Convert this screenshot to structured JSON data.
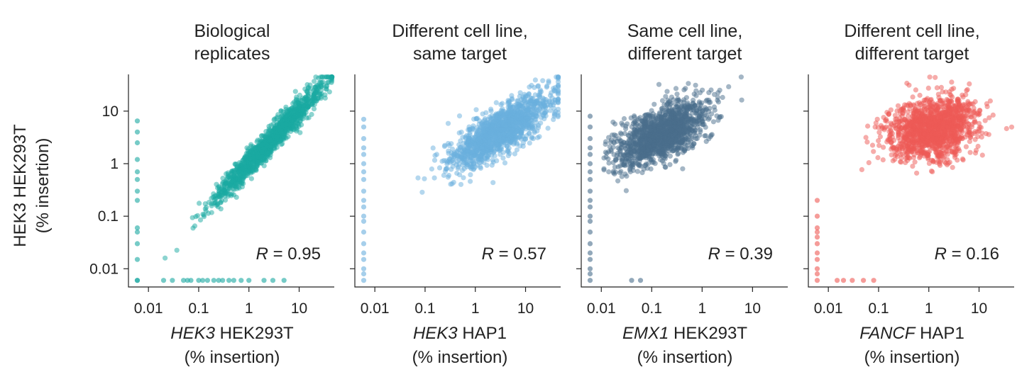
{
  "figure": {
    "ylabel_lines": [
      "HEK3 HEK293T",
      "(% insertion)"
    ]
  },
  "chart_data": [
    {
      "type": "scatter",
      "title_lines": [
        "Biological",
        "replicates"
      ],
      "xlabel_italic": "HEK3",
      "xlabel_rest": " HEK293T",
      "xlabel_line2": "(% insertion)",
      "ylabel": "HEK3 HEK293T (% insertion)",
      "x_scale": "log",
      "y_scale": "log",
      "xlim": [
        0.004,
        50
      ],
      "ylim": [
        0.0045,
        50
      ],
      "xticks": [
        0.01,
        0.1,
        1,
        10
      ],
      "xtick_labels": [
        "0.01",
        "0.1",
        "1",
        "10"
      ],
      "yticks": [
        0.01,
        0.1,
        1,
        10
      ],
      "ytick_labels": [
        "0.01",
        "0.1",
        "1",
        "10"
      ],
      "color": "#1aa9a2",
      "r_symbol": "R",
      "r_text": " = 0.95",
      "trend": {
        "x_center": 0.4,
        "x_sd": 0.55,
        "slope": 1.0,
        "intercept": 0.0,
        "noise_sd": 0.13,
        "n": 1400
      },
      "floor_points_x": [
        0.006,
        0.02,
        0.03,
        0.05,
        0.06,
        0.07,
        0.1,
        0.12,
        0.15,
        0.2,
        0.25,
        0.3,
        0.4,
        0.5,
        0.7,
        1.0,
        2.0,
        3.0,
        5.0
      ],
      "floor_y": 0.006,
      "left_points_y": [
        0.006,
        0.015,
        0.03,
        0.05,
        0.06,
        0.2,
        0.3,
        0.5,
        0.7,
        1.2,
        2.5,
        4,
        6.5
      ],
      "left_x": 0.006
    },
    {
      "type": "scatter",
      "title_lines": [
        "Different cell line,",
        "same target"
      ],
      "xlabel_italic": "HEK3",
      "xlabel_rest": " HAP1",
      "xlabel_line2": "(% insertion)",
      "ylabel": "HEK3 HEK293T (% insertion)",
      "x_scale": "log",
      "y_scale": "log",
      "xlim": [
        0.004,
        50
      ],
      "ylim": [
        0.0045,
        50
      ],
      "xticks": [
        0.01,
        0.1,
        1,
        10
      ],
      "xtick_labels": [
        "0.01",
        "0.1",
        "1",
        "10"
      ],
      "yticks": [
        0.01,
        0.1,
        1,
        10
      ],
      "ytick_labels": [],
      "color": "#6aafde",
      "r_symbol": "R",
      "r_text": " = 0.57",
      "trend": {
        "x_center": 0.5,
        "x_sd": 0.5,
        "slope": 0.55,
        "intercept": 0.35,
        "noise_sd": 0.22,
        "n": 1400
      },
      "floor_points_x": [],
      "floor_y": 0.006,
      "left_points_y": [
        0.006,
        0.008,
        0.01,
        0.015,
        0.02,
        0.03,
        0.05,
        0.08,
        0.1,
        0.15,
        0.2,
        0.3,
        0.5,
        0.7,
        1,
        1.5,
        2,
        3,
        5,
        7
      ],
      "left_x": 0.006
    },
    {
      "type": "scatter",
      "title_lines": [
        "Same cell line,",
        "different target"
      ],
      "xlabel_italic": "EMX1",
      "xlabel_rest": " HEK293T",
      "xlabel_line2": "(% insertion)",
      "ylabel": "HEK3 HEK293T (% insertion)",
      "x_scale": "log",
      "y_scale": "log",
      "xlim": [
        0.004,
        50
      ],
      "ylim": [
        0.0045,
        50
      ],
      "xticks": [
        0.01,
        0.1,
        1,
        10
      ],
      "xtick_labels": [
        "0.01",
        "0.1",
        "1",
        "10"
      ],
      "yticks": [
        0.01,
        0.1,
        1,
        10
      ],
      "ytick_labels": [],
      "color": "#4a6e8c",
      "r_symbol": "R",
      "r_text": " = 0.39",
      "trend": {
        "x_center": -0.8,
        "x_sd": 0.45,
        "slope": 0.4,
        "intercept": 0.9,
        "noise_sd": 0.25,
        "n": 1400
      },
      "floor_points_x": [
        0.04,
        0.06
      ],
      "floor_y": 0.006,
      "left_points_y": [
        0.006,
        0.008,
        0.01,
        0.015,
        0.02,
        0.03,
        0.05,
        0.08,
        0.1,
        0.15,
        0.2,
        0.3,
        0.5,
        0.7,
        1,
        1.5,
        2,
        3,
        5,
        8
      ],
      "left_x": 0.006
    },
    {
      "type": "scatter",
      "title_lines": [
        "Different cell line,",
        "different target"
      ],
      "xlabel_italic": "FANCF",
      "xlabel_rest": " HAP1",
      "xlabel_line2": "(% insertion)",
      "ylabel": "HEK3 HEK293T (% insertion)",
      "x_scale": "log",
      "y_scale": "log",
      "xlim": [
        0.004,
        50
      ],
      "ylim": [
        0.0045,
        50
      ],
      "xticks": [
        0.01,
        0.1,
        1,
        10
      ],
      "xtick_labels": [
        "0.01",
        "0.1",
        "1",
        "10"
      ],
      "yticks": [
        0.01,
        0.1,
        1,
        10
      ],
      "ytick_labels": [],
      "color": "#ee5a55",
      "r_symbol": "R",
      "r_text": " = 0.16",
      "trend": {
        "x_center": 0.1,
        "x_sd": 0.45,
        "slope": 0.15,
        "intercept": 0.65,
        "noise_sd": 0.3,
        "n": 1400
      },
      "floor_points_x": [
        0.015,
        0.02,
        0.03,
        0.05,
        0.08
      ],
      "floor_y": 0.006,
      "left_points_y": [
        0.006,
        0.008,
        0.01,
        0.015,
        0.02,
        0.03,
        0.04,
        0.05,
        0.06,
        0.1,
        0.2
      ],
      "left_x": 0.006
    }
  ]
}
